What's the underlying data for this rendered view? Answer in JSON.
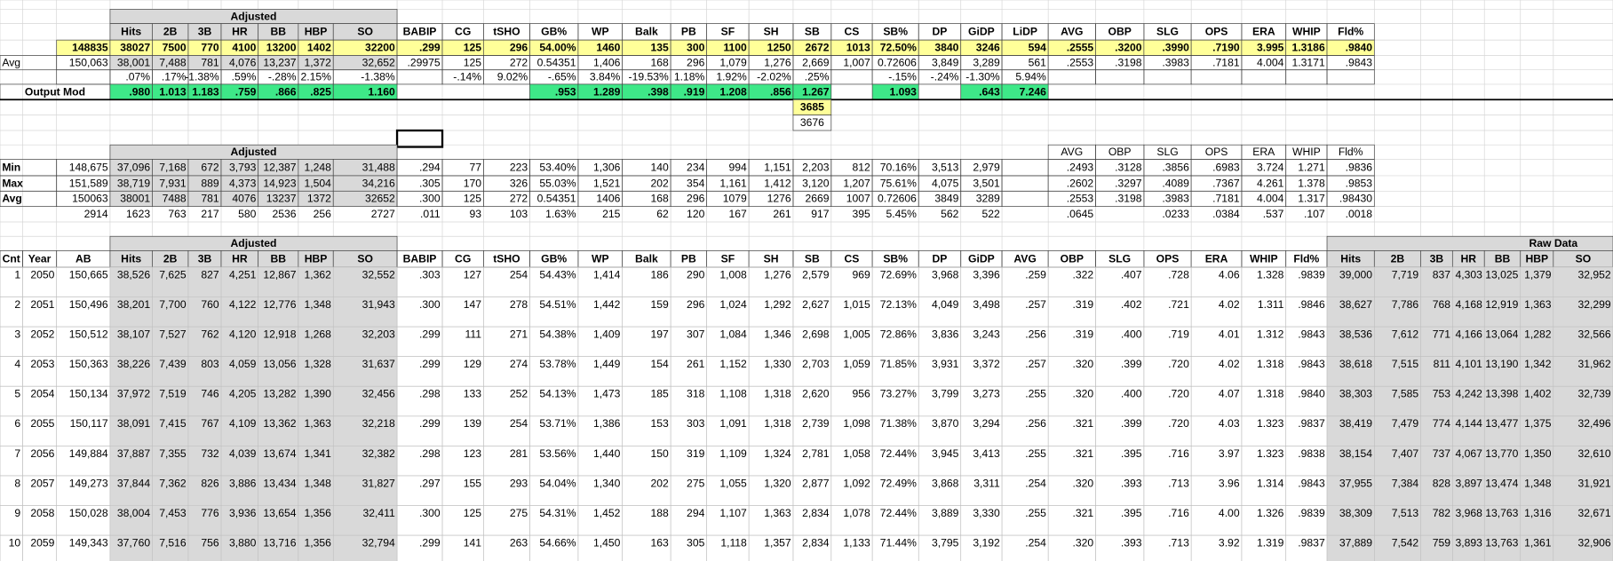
{
  "top": {
    "group_label": "Adjusted",
    "headers": [
      "Hits",
      "2B",
      "3B",
      "HR",
      "BB",
      "HBP",
      "SO",
      "BABIP",
      "CG",
      "tSHO",
      "GB%",
      "WP",
      "Balk",
      "PB",
      "SF",
      "SH",
      "SB",
      "CS",
      "SB%",
      "DP",
      "GiDP",
      "LiDP",
      "AVG",
      "OBP",
      "SLG",
      "OPS",
      "ERA",
      "WHIP",
      "Fld%"
    ],
    "targets": [
      "148835",
      "38027",
      "7500",
      "770",
      "4100",
      "13200",
      "1402",
      "32200",
      ".299",
      "125",
      "296",
      "54.00%",
      "1460",
      "135",
      "300",
      "1100",
      "1250",
      "2672",
      "1013",
      "72.50%",
      "3840",
      "3246",
      "594",
      ".2555",
      ".3200",
      ".3990",
      ".7190",
      "3.995",
      "1.3186",
      ".9840"
    ],
    "avg": {
      "label": "Avg",
      "values": [
        "150,063",
        "38,001",
        "7,488",
        "781",
        "4,076",
        "13,237",
        "1,372",
        "32,652",
        ".29975",
        "125",
        "272",
        "0.54351",
        "1,406",
        "168",
        "296",
        "1,079",
        "1,276",
        "2,669",
        "1,007",
        "0.72606",
        "3,849",
        "3,289",
        "561",
        ".2553",
        ".3198",
        ".3983",
        ".7181",
        "4.004",
        "1.3171",
        ".9843"
      ]
    },
    "diffs": [
      ".07%",
      ".17%",
      "-1.38%",
      ".59%",
      "-.28%",
      "2.15%",
      "-1.38%",
      null,
      "-.14%",
      "9.02%",
      "-.65%",
      "3.84%",
      "-19.53%",
      "1.18%",
      "1.92%",
      "-2.02%",
      ".25%",
      null,
      "-.15%",
      "-.24%",
      "-1.30%",
      "5.94%"
    ],
    "output_mod": {
      "label": "Output Mod",
      "values": [
        ".980",
        "1.013",
        "1.183",
        ".759",
        ".866",
        ".825",
        "1.160",
        null,
        null,
        null,
        ".953",
        "1.289",
        ".398",
        ".919",
        "1.208",
        ".856",
        "1.267",
        null,
        "1.093",
        null,
        ".643",
        "7.246"
      ]
    },
    "sb_target": "3685",
    "sb_avg": "3676"
  },
  "range": {
    "group_label": "Adjusted",
    "headers": [
      "AVG",
      "OBP",
      "SLG",
      "OPS",
      "ERA",
      "WHIP",
      "Fld%"
    ],
    "rows": [
      {
        "label": "Min",
        "values": [
          "148,675",
          "37,096",
          "7,168",
          "672",
          "3,793",
          "12,387",
          "1,248",
          "31,488",
          ".294",
          "77",
          "223",
          "53.40%",
          "1,306",
          "140",
          "234",
          "994",
          "1,151",
          "2,203",
          "812",
          "70.16%",
          "3,513",
          "2,979",
          null,
          ".2493",
          ".3128",
          ".3856",
          ".6983",
          "3.724",
          "1.271",
          ".9836"
        ]
      },
      {
        "label": "Max",
        "values": [
          "151,589",
          "38,719",
          "7,931",
          "889",
          "4,373",
          "14,923",
          "1,504",
          "34,216",
          ".305",
          "170",
          "326",
          "55.03%",
          "1,521",
          "202",
          "354",
          "1,161",
          "1,412",
          "3,120",
          "1,207",
          "75.61%",
          "4,075",
          "3,501",
          null,
          ".2602",
          ".3297",
          ".4089",
          ".7367",
          "4.261",
          "1.378",
          ".9853"
        ]
      },
      {
        "label": "Avg",
        "values": [
          "150063",
          "38001",
          "7488",
          "781",
          "4076",
          "13237",
          "1372",
          "32652",
          ".300",
          "125",
          "272",
          "0.54351",
          "1406",
          "168",
          "296",
          "1079",
          "1276",
          "2669",
          "1007",
          "0.72606",
          "3849",
          "3289",
          null,
          ".2553",
          ".3198",
          ".3983",
          ".7181",
          "4.004",
          "1.317",
          ".98430"
        ]
      }
    ],
    "spread": [
      "2914",
      "1623",
      "763",
      "217",
      "580",
      "2536",
      "256",
      "2727",
      ".011",
      "93",
      "103",
      "1.63%",
      "215",
      "62",
      "120",
      "167",
      "261",
      "917",
      "395",
      "5.45%",
      "562",
      "522",
      null,
      ".0645",
      null,
      ".0233",
      ".0384",
      ".537",
      ".107",
      ".0018"
    ]
  },
  "table": {
    "group_label": "Adjusted",
    "raw_label": "Raw Data",
    "headers": [
      "Cnt",
      "Year",
      "AB",
      "Hits",
      "2B",
      "3B",
      "HR",
      "BB",
      "HBP",
      "SO",
      "BABIP",
      "CG",
      "tSHO",
      "GB%",
      "WP",
      "Balk",
      "PB",
      "SF",
      "SH",
      "SB",
      "CS",
      "SB%",
      "DP",
      "GiDP",
      "AVG",
      "OBP",
      "SLG",
      "OPS",
      "ERA",
      "WHIP",
      "Fld%",
      "Hits",
      "2B",
      "3B",
      "HR",
      "BB",
      "HBP",
      "SO"
    ],
    "rows": [
      [
        "1",
        "2050",
        "150,665",
        "38,526",
        "7,625",
        "827",
        "4,251",
        "12,867",
        "1,362",
        "32,552",
        ".303",
        "127",
        "254",
        "54.43%",
        "1,414",
        "186",
        "290",
        "1,008",
        "1,276",
        "2,579",
        "969",
        "72.69%",
        "3,968",
        "3,396",
        ".259",
        ".322",
        ".407",
        ".728",
        "4.06",
        "1.328",
        ".9839",
        "39,000",
        "7,719",
        "837",
        "4,303",
        "13,025",
        "1,379",
        "32,952"
      ],
      [
        "2",
        "2051",
        "150,496",
        "38,201",
        "7,700",
        "760",
        "4,122",
        "12,776",
        "1,348",
        "31,943",
        ".300",
        "147",
        "278",
        "54.51%",
        "1,442",
        "159",
        "296",
        "1,024",
        "1,292",
        "2,627",
        "1,015",
        "72.13%",
        "4,049",
        "3,498",
        ".257",
        ".319",
        ".402",
        ".721",
        "4.02",
        "1.311",
        ".9846",
        "38,627",
        "7,786",
        "768",
        "4,168",
        "12,919",
        "1,363",
        "32,299"
      ],
      [
        "3",
        "2052",
        "150,512",
        "38,107",
        "7,527",
        "762",
        "4,120",
        "12,918",
        "1,268",
        "32,203",
        ".299",
        "111",
        "271",
        "54.38%",
        "1,409",
        "197",
        "307",
        "1,084",
        "1,346",
        "2,698",
        "1,005",
        "72.86%",
        "3,836",
        "3,243",
        ".256",
        ".319",
        ".400",
        ".719",
        "4.01",
        "1.312",
        ".9843",
        "38,536",
        "7,612",
        "771",
        "4,166",
        "13,064",
        "1,282",
        "32,566"
      ],
      [
        "4",
        "2053",
        "150,363",
        "38,226",
        "7,439",
        "803",
        "4,059",
        "13,056",
        "1,328",
        "31,637",
        ".299",
        "129",
        "274",
        "53.78%",
        "1,449",
        "154",
        "261",
        "1,152",
        "1,330",
        "2,703",
        "1,059",
        "71.85%",
        "3,931",
        "3,372",
        ".257",
        ".320",
        ".399",
        ".720",
        "4.02",
        "1.318",
        ".9843",
        "38,618",
        "7,515",
        "811",
        "4,101",
        "13,190",
        "1,342",
        "31,962"
      ],
      [
        "5",
        "2054",
        "150,134",
        "37,972",
        "7,519",
        "746",
        "4,205",
        "13,282",
        "1,390",
        "32,456",
        ".298",
        "133",
        "252",
        "54.13%",
        "1,473",
        "185",
        "318",
        "1,108",
        "1,318",
        "2,620",
        "956",
        "73.27%",
        "3,799",
        "3,273",
        ".255",
        ".320",
        ".400",
        ".720",
        "4.07",
        "1.318",
        ".9840",
        "38,303",
        "7,585",
        "753",
        "4,242",
        "13,398",
        "1,402",
        "32,739"
      ],
      [
        "6",
        "2055",
        "150,117",
        "38,091",
        "7,415",
        "767",
        "4,109",
        "13,362",
        "1,363",
        "32,218",
        ".299",
        "139",
        "254",
        "53.71%",
        "1,386",
        "153",
        "303",
        "1,091",
        "1,318",
        "2,739",
        "1,098",
        "71.38%",
        "3,870",
        "3,294",
        ".256",
        ".321",
        ".399",
        ".720",
        "4.03",
        "1.323",
        ".9837",
        "38,419",
        "7,479",
        "774",
        "4,144",
        "13,477",
        "1,375",
        "32,496"
      ],
      [
        "7",
        "2056",
        "149,884",
        "37,887",
        "7,355",
        "732",
        "4,039",
        "13,674",
        "1,341",
        "32,382",
        ".298",
        "123",
        "281",
        "53.56%",
        "1,440",
        "150",
        "319",
        "1,109",
        "1,324",
        "2,781",
        "1,058",
        "72.44%",
        "3,945",
        "3,413",
        ".255",
        ".321",
        ".395",
        ".716",
        "3.97",
        "1.323",
        ".9838",
        "38,154",
        "7,407",
        "737",
        "4,067",
        "13,770",
        "1,350",
        "32,610"
      ],
      [
        "8",
        "2057",
        "149,273",
        "37,844",
        "7,362",
        "826",
        "3,886",
        "13,434",
        "1,348",
        "31,827",
        ".297",
        "155",
        "293",
        "54.04%",
        "1,340",
        "202",
        "275",
        "1,055",
        "1,320",
        "2,877",
        "1,092",
        "72.49%",
        "3,868",
        "3,311",
        ".254",
        ".320",
        ".393",
        ".713",
        "3.96",
        "1.314",
        ".9843",
        "37,955",
        "7,384",
        "828",
        "3,897",
        "13,474",
        "1,348",
        "31,921"
      ],
      [
        "9",
        "2058",
        "150,028",
        "38,004",
        "7,453",
        "776",
        "3,936",
        "13,654",
        "1,356",
        "32,411",
        ".300",
        "125",
        "275",
        "54.31%",
        "1,452",
        "188",
        "294",
        "1,107",
        "1,363",
        "2,834",
        "1,078",
        "72.44%",
        "3,889",
        "3,330",
        ".255",
        ".321",
        ".395",
        ".716",
        "4.00",
        "1.326",
        ".9839",
        "38,309",
        "7,513",
        "782",
        "3,968",
        "13,763",
        "1,316",
        "32,671"
      ],
      [
        "10",
        "2059",
        "149,343",
        "37,760",
        "7,516",
        "756",
        "3,880",
        "13,716",
        "1,356",
        "32,794",
        ".299",
        "141",
        "263",
        "54.66%",
        "1,450",
        "163",
        "305",
        "1,118",
        "1,357",
        "2,834",
        "1,133",
        "71.44%",
        "3,795",
        "3,192",
        ".254",
        ".320",
        ".393",
        ".713",
        "3.92",
        "1.319",
        ".9837",
        "37,889",
        "7,542",
        "759",
        "3,893",
        "13,763",
        "1,361",
        "32,906"
      ]
    ]
  }
}
